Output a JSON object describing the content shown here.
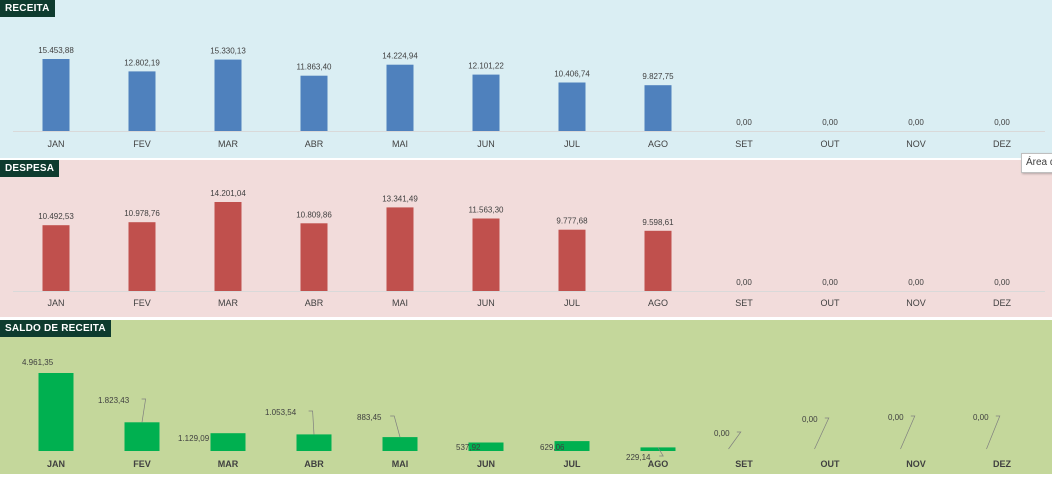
{
  "panels": [
    {
      "title": "RECEITA",
      "chart_data": {
        "type": "bar",
        "categories": [
          "JAN",
          "FEV",
          "MAR",
          "ABR",
          "MAI",
          "JUN",
          "JUL",
          "AGO",
          "SET",
          "OUT",
          "NOV",
          "DEZ"
        ],
        "values": [
          15453.88,
          12802.19,
          15330.13,
          11863.4,
          14224.94,
          12101.22,
          10406.74,
          9827.75,
          0,
          0,
          0,
          0
        ],
        "labels": [
          "15.453,88",
          "12.802,19",
          "15.330,13",
          "11.863,40",
          "14.224,94",
          "12.101,22",
          "10.406,74",
          "9.827,75",
          "0,00",
          "0,00",
          "0,00",
          "0,00"
        ],
        "ylim": [
          0,
          15453.88
        ],
        "color": "#4f81bd",
        "grid": false,
        "legend": false
      }
    },
    {
      "title": "DESPESA",
      "chart_data": {
        "type": "bar",
        "categories": [
          "JAN",
          "FEV",
          "MAR",
          "ABR",
          "MAI",
          "JUN",
          "JUL",
          "AGO",
          "SET",
          "OUT",
          "NOV",
          "DEZ"
        ],
        "values": [
          10492.53,
          10978.76,
          14201.04,
          10809.86,
          13341.49,
          11563.3,
          9777.68,
          9598.61,
          0,
          0,
          0,
          0
        ],
        "labels": [
          "10.492,53",
          "10.978,76",
          "14.201,04",
          "10.809,86",
          "13.341,49",
          "11.563,30",
          "9.777,68",
          "9.598,61",
          "0,00",
          "0,00",
          "0,00",
          "0,00"
        ],
        "ylim": [
          0,
          14201.04
        ],
        "color": "#c0504d",
        "grid": false,
        "legend": false
      }
    },
    {
      "title": "SALDO DE RECEITA",
      "chart_data": {
        "type": "bar",
        "categories": [
          "JAN",
          "FEV",
          "MAR",
          "ABR",
          "MAI",
          "JUN",
          "JUL",
          "AGO",
          "SET",
          "OUT",
          "NOV",
          "DEZ"
        ],
        "values": [
          4961.35,
          1823.43,
          1129.09,
          1053.54,
          883.45,
          537.92,
          629.06,
          229.14,
          0,
          0,
          0,
          0
        ],
        "labels": [
          "4.961,35",
          "1.823,43",
          "1.129,09",
          "1.053,54",
          "883,45",
          "537,92",
          "629,06",
          "229,14",
          "0,00",
          "0,00",
          "0,00",
          "0,00"
        ],
        "ylim": [
          0,
          4961.35
        ],
        "color": "#00b050",
        "grid": false,
        "legend": false
      }
    }
  ],
  "tooltip": "Área do Gráfico"
}
